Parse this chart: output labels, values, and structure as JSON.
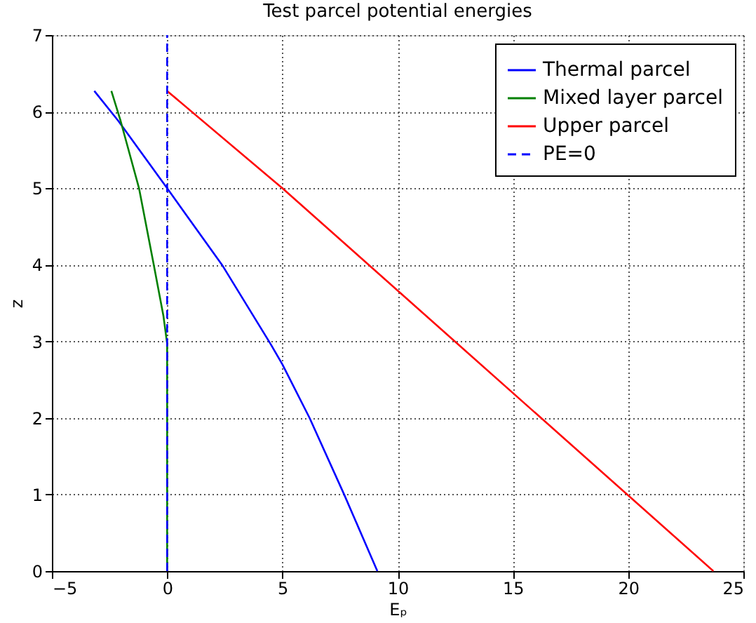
{
  "chart_data": {
    "type": "line",
    "title": "Test parcel potential energies",
    "xlabel": "Eₚ",
    "ylabel": "z",
    "xlim": [
      -5,
      25
    ],
    "xticks": [
      -5,
      0,
      5,
      10,
      15,
      20,
      25
    ],
    "ylim": [
      0,
      7
    ],
    "yticks": [
      0,
      1,
      2,
      3,
      4,
      5,
      6,
      7
    ],
    "grid": true,
    "legend": "top right",
    "line_style": "solid",
    "series": [
      {
        "name": "Thermal parcel",
        "color": "#0000ff",
        "x": [
          -3.16,
          -2.12,
          0,
          2.38,
          4.48,
          5,
          6.18,
          7.68,
          9.12
        ],
        "values": [
          6.27,
          5.88,
          5,
          4,
          2.97,
          2.7,
          2,
          1,
          0
        ]
      },
      {
        "name": "Mixed layer parcel",
        "color": "#008000",
        "x": [
          -2.42,
          -2.02,
          -1.22,
          -0.58,
          -0.16,
          0,
          0
        ],
        "values": [
          6.27,
          5.88,
          5,
          4,
          3.33,
          2.97,
          0
        ]
      },
      {
        "name": "Upper parcel",
        "color": "#ff0000",
        "x": [
          0,
          5,
          23.7
        ],
        "values": [
          6.27,
          5,
          0
        ]
      },
      {
        "name": "PE=0",
        "color": "#0000ff",
        "line_style": "dashed",
        "x": [
          0,
          0
        ],
        "values": [
          0,
          7
        ]
      }
    ]
  }
}
